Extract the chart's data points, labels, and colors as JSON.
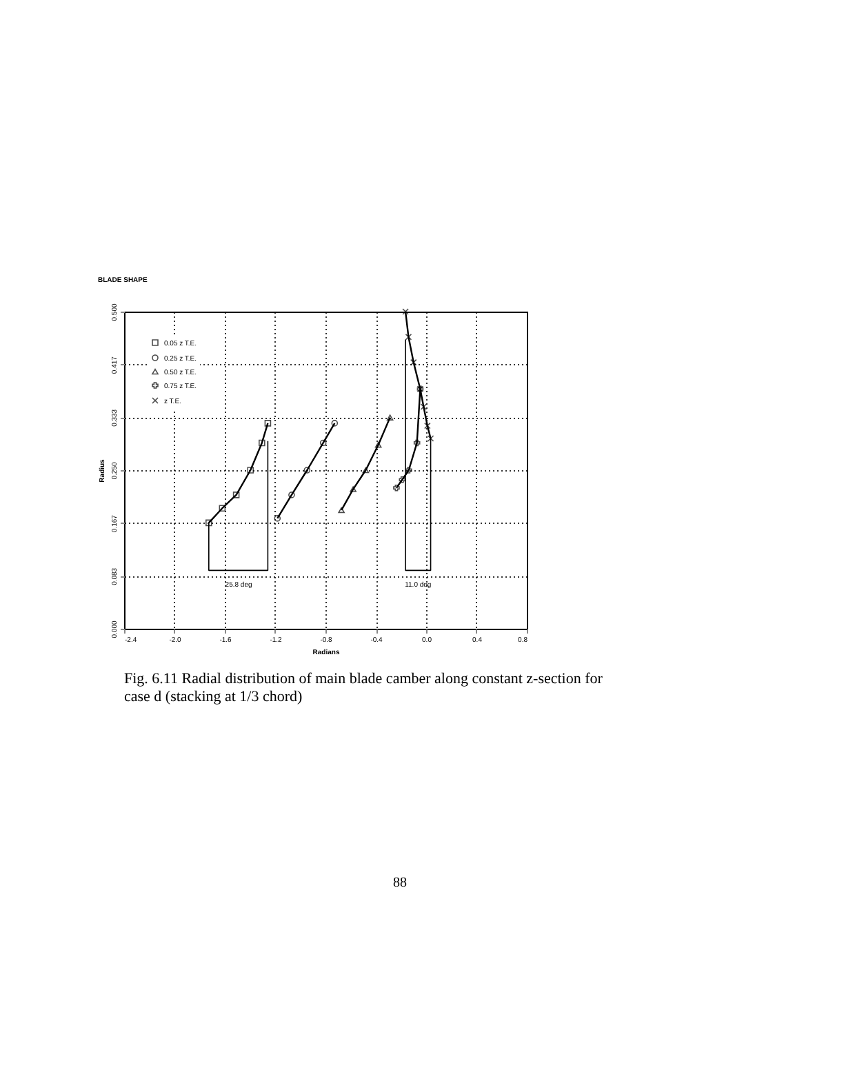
{
  "chart_data": {
    "type": "line",
    "title": "BLADE SHAPE",
    "xlabel": "Radians",
    "ylabel": "Radius",
    "xlim": [
      -2.4,
      0.8
    ],
    "xticks": [
      -2.4,
      {
        "value": -2.0,
        "label": "-2.0"
      },
      -1.6,
      -1.2,
      -0.8,
      -0.4,
      {
        "value": 0,
        "label": "0.0"
      },
      0.4,
      0.8
    ],
    "ylim": [
      0,
      0.5
    ],
    "yticks": [
      {
        "value": 0,
        "label": "0.000"
      },
      {
        "value": 0.0833,
        "label": "0.083"
      },
      {
        "value": 0.1667,
        "label": "0.167"
      },
      {
        "value": 0.25,
        "label": "0.250"
      },
      {
        "value": 0.3333,
        "label": "0.333"
      },
      {
        "value": 0.4167,
        "label": "0.417"
      },
      {
        "value": 0.5,
        "label": "0.500"
      }
    ],
    "grid": true,
    "legend": "top left",
    "series": [
      {
        "name": "0.05 z T.E.",
        "color": "#000000",
        "marker": "square",
        "x": [
          -1.727,
          -1.62,
          -1.509,
          -1.396,
          -1.305,
          -1.258
        ],
        "values": [
          0.167,
          0.19,
          0.211,
          0.25,
          0.293,
          0.324
        ]
      },
      {
        "name": "0.25 z T.E.",
        "color": "#000000",
        "marker": "circle",
        "x": [
          -1.182,
          -1.069,
          -0.946,
          -0.818,
          -0.727
        ],
        "values": [
          0.174,
          0.211,
          0.25,
          0.293,
          0.324
        ]
      },
      {
        "name": "0.50 z T.E.",
        "color": "#000000",
        "marker": "triangle",
        "x": [
          -0.673,
          -0.58,
          -0.48,
          -0.38,
          -0.287
        ],
        "values": [
          0.187,
          0.22,
          0.25,
          0.29,
          0.333
        ]
      },
      {
        "name": "0.75 z T.E.",
        "color": "#000000",
        "marker": "cross",
        "x": [
          -0.236,
          -0.19,
          -0.138,
          -0.073,
          -0.047
        ],
        "values": [
          0.222,
          0.235,
          0.25,
          0.293,
          0.378
        ]
      },
      {
        "name": "z T.E.",
        "color": "#000000",
        "marker": "x",
        "x": [
          -0.164,
          -0.14,
          -0.1,
          -0.047,
          -0.02,
          0.01,
          0.036
        ],
        "values": [
          0.5,
          0.46,
          0.42,
          0.378,
          0.35,
          0.32,
          0.3
        ]
      },
      {
        "color": "#000000",
        "marker": "none",
        "x": [
          -1.727,
          -1.727,
          -1.258,
          -1.258
        ],
        "values": [
          0.167,
          0.092,
          0.092,
          0.296
        ]
      },
      {
        "color": "#000000",
        "marker": "none",
        "x": [
          -0.164,
          -0.164,
          0.036,
          0.036
        ],
        "values": [
          0.456,
          0.092,
          0.092,
          0.3
        ]
      }
    ],
    "annotations": [
      {
        "text": "25.8 deg",
        "x": -1.49,
        "y": 0.092
      },
      {
        "text": "11.0 deg",
        "x": -0.064,
        "y": 0.092
      },
      "Fig. 6.11 Radial distribution of main blade camber along constant z-section for case d (stacking at 1/3 chord)",
      "88"
    ]
  }
}
